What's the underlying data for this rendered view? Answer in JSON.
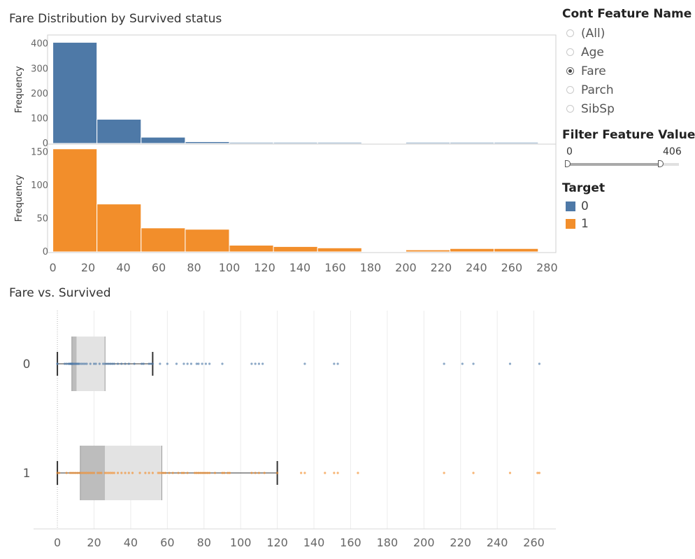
{
  "titles": {
    "histogram": "Fare Distribution by Survived status",
    "boxplot": "Fare vs. Survived"
  },
  "filters": {
    "feature_header": "Cont Feature Name",
    "options": [
      {
        "label": "(All)",
        "selected": false
      },
      {
        "label": "Age",
        "selected": false
      },
      {
        "label": "Fare",
        "selected": true
      },
      {
        "label": "Parch",
        "selected": false
      },
      {
        "label": "SibSp",
        "selected": false
      }
    ],
    "value_header": "Filter Feature Value",
    "range_min": "0",
    "range_max": "406",
    "range_fraction": 0.84
  },
  "legend": {
    "header": "Target",
    "items": [
      {
        "label": "0",
        "color": "#4e79a7"
      },
      {
        "label": "1",
        "color": "#f28e2b"
      }
    ]
  },
  "chart_data": [
    {
      "type": "bar",
      "title": "Fare Distribution by Survived status",
      "ylabel": "Frequency",
      "bin_edges": [
        0,
        25,
        50,
        75,
        100,
        125,
        150,
        175,
        200,
        225,
        250,
        275
      ],
      "x_ticks": [
        0,
        20,
        40,
        60,
        80,
        100,
        120,
        140,
        160,
        180,
        200,
        220,
        240,
        260,
        280
      ],
      "xlim": [
        -3,
        285
      ],
      "series": [
        {
          "name": "0",
          "color": "#4e79a7",
          "ylim": [
            0,
            430
          ],
          "y_ticks": [
            0,
            100,
            200,
            300,
            400
          ],
          "values": [
            406,
            97,
            25,
            7,
            1,
            1,
            2,
            0,
            1,
            1,
            1
          ]
        },
        {
          "name": "1",
          "color": "#f28e2b",
          "ylim": [
            0,
            160
          ],
          "y_ticks": [
            0,
            50,
            100,
            150
          ],
          "values": [
            155,
            72,
            36,
            34,
            10,
            8,
            6,
            0,
            3,
            5,
            5
          ]
        }
      ]
    },
    {
      "type": "boxplot",
      "title": "Fare vs. Survived",
      "categories": [
        "0",
        "1"
      ],
      "x_ticks": [
        0,
        20,
        40,
        60,
        80,
        100,
        120,
        140,
        160,
        180,
        200,
        220,
        240,
        260
      ],
      "xlim": [
        -13,
        272
      ],
      "boxes": [
        {
          "category": "0",
          "color": "#4e79a7",
          "whisker_low": 0,
          "q1": 7.9,
          "median": 10.5,
          "q3": 26,
          "whisker_high": 52,
          "points": [
            0,
            0,
            4,
            5,
            6,
            6.5,
            7,
            7.2,
            7.5,
            7.8,
            8,
            8.05,
            8.5,
            9,
            9.5,
            10,
            10.5,
            11,
            11.5,
            12,
            13,
            14,
            15,
            16,
            18,
            20,
            21,
            23,
            25,
            26,
            27,
            28,
            29,
            30,
            31,
            33,
            35,
            37,
            39,
            42,
            46,
            47,
            50,
            51,
            52,
            56,
            60,
            65,
            69,
            71,
            73,
            76,
            77,
            79,
            81,
            83,
            90,
            106,
            108,
            110,
            112,
            135,
            151,
            153,
            211,
            221,
            227,
            247,
            263
          ]
        },
        {
          "category": "1",
          "color": "#f28e2b",
          "whisker_low": 0,
          "q1": 12.5,
          "median": 26,
          "q3": 57,
          "whisker_high": 120,
          "points": [
            0,
            1,
            5,
            7,
            8,
            9,
            10,
            11,
            12,
            13,
            14,
            15,
            16,
            17,
            18,
            19,
            20,
            22,
            23,
            24,
            26,
            27,
            28,
            29,
            30,
            31,
            33,
            35,
            37,
            39,
            41,
            45,
            48,
            50,
            52,
            55,
            56,
            57,
            58,
            59,
            61,
            63,
            66,
            68,
            69,
            71,
            75,
            76,
            77,
            78,
            79,
            80,
            81,
            82,
            83,
            86,
            90,
            91,
            93,
            94,
            106,
            108,
            110,
            113,
            120,
            133,
            135,
            146,
            151,
            153,
            164,
            211,
            227,
            247,
            262,
            263
          ]
        }
      ]
    }
  ]
}
